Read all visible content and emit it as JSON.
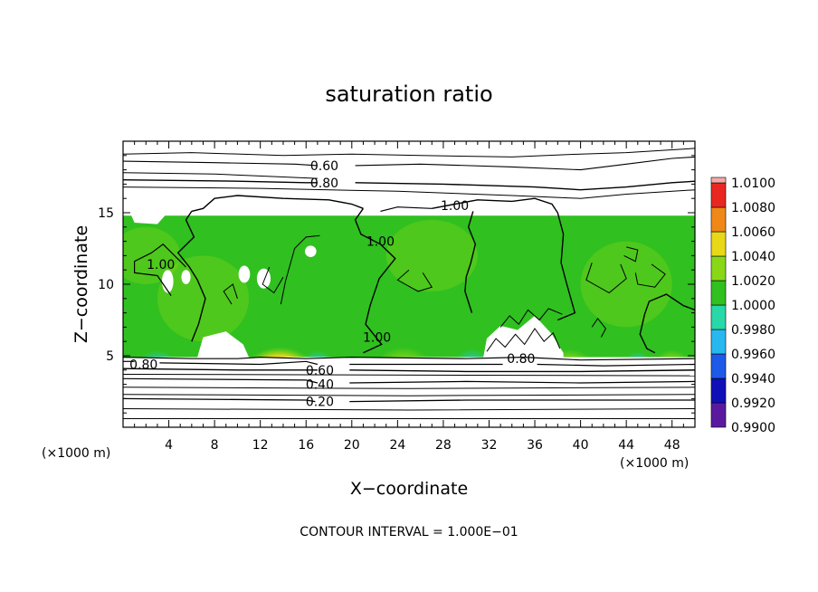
{
  "chart_data": {
    "type": "heatmap",
    "title": "saturation ratio",
    "xlabel": "X−coordinate",
    "ylabel": "Z−coordinate",
    "x_unit": "(×1000 m)",
    "y_unit": "(×1000 m)",
    "xlim": [
      0,
      50
    ],
    "ylim": [
      0,
      20
    ],
    "x_ticks": [
      4,
      8,
      12,
      16,
      20,
      24,
      28,
      32,
      36,
      40,
      44,
      48
    ],
    "y_ticks": [
      5,
      10,
      15
    ],
    "footer": "CONTOUR INTERVAL = 1.000E−01",
    "colorbar": {
      "levels": [
        "0.9900",
        "0.9920",
        "0.9940",
        "0.9960",
        "0.9980",
        "1.0000",
        "1.0020",
        "1.0040",
        "1.0060",
        "1.0080",
        "1.0100"
      ],
      "colors": [
        "#5a1aa0",
        "#1010b8",
        "#1e5ae8",
        "#28b8f0",
        "#28d8a8",
        "#30c020",
        "#88d818",
        "#e8d818",
        "#f08818",
        "#e82820"
      ],
      "top_color": "#f4a8a8"
    },
    "field": {
      "z_bottom": 4.9,
      "z_top": 14.8,
      "background_level": 1.0
    },
    "contour_labels": [
      {
        "text": "0.60",
        "x": 17.6,
        "z": 18.3
      },
      {
        "text": "0.80",
        "x": 17.6,
        "z": 17.1
      },
      {
        "text": "1.00",
        "x": 29.0,
        "z": 15.5
      },
      {
        "text": "1.00",
        "x": 22.5,
        "z": 13.0
      },
      {
        "text": "1.00",
        "x": 22.2,
        "z": 6.3
      },
      {
        "text": "1.00",
        "x": 3.3,
        "z": 11.4
      },
      {
        "text": "0.80",
        "x": 1.8,
        "z": 4.4
      },
      {
        "text": "0.60",
        "x": 17.2,
        "z": 4.0
      },
      {
        "text": "0.40",
        "x": 17.2,
        "z": 3.0
      },
      {
        "text": "0.20",
        "x": 17.2,
        "z": 1.8
      },
      {
        "text": "0.80",
        "x": 34.8,
        "z": 4.8
      }
    ]
  }
}
